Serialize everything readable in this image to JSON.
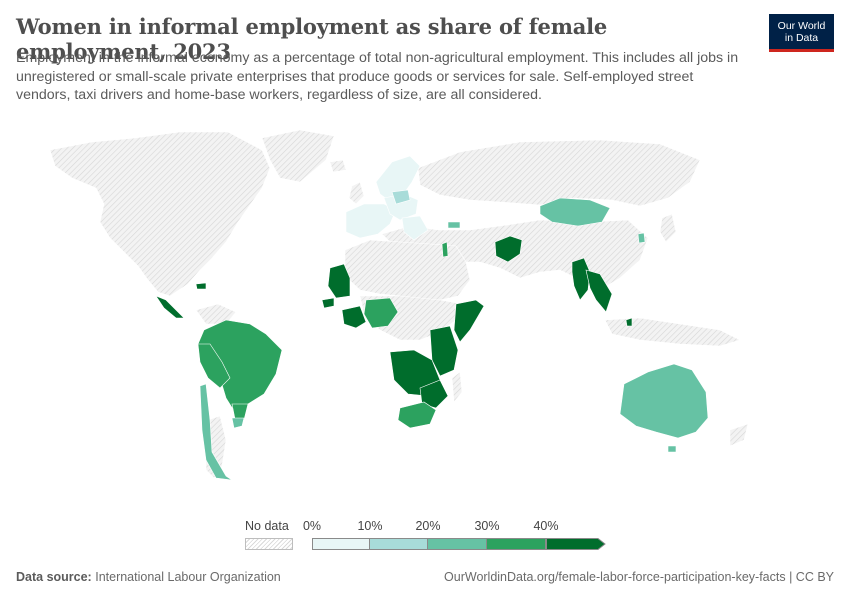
{
  "header": {
    "title": "Women in informal employment as share of female employment, 2023",
    "subtitle": "Employment in the informal economy as a percentage of total non-agricultural employment. This includes all jobs in unregistered or small-scale private enterprises that produce goods or services for sale. Self-employed street vendors, taxi drivers and home-base workers, regardless of size, are all considered."
  },
  "logo": {
    "line1": "Our World",
    "line2": "in Data"
  },
  "legend": {
    "no_data_label": "No data",
    "ticks": [
      "0%",
      "10%",
      "20%",
      "30%",
      "40%"
    ],
    "bins": [
      {
        "from": 0,
        "to": 10,
        "color": "#e8f6f6"
      },
      {
        "from": 10,
        "to": 20,
        "color": "#a8dcd9"
      },
      {
        "from": 20,
        "to": 30,
        "color": "#66c2a4"
      },
      {
        "from": 30,
        "to": 40,
        "color": "#2ca25f"
      },
      {
        "from": 40,
        "to": 50,
        "color": "#006d2c"
      }
    ]
  },
  "colors": {
    "no_data": "#ececec",
    "bin_0_10": "#e8f6f6",
    "bin_10_20": "#a8dcd9",
    "bin_20_30": "#66c2a4",
    "bin_30_40": "#2ca25f",
    "bin_40_plus": "#006d2c",
    "logo_bg": "#002147",
    "logo_accent": "#ce261e"
  },
  "footer": {
    "source_label": "Data source:",
    "source_value": "International Labour Organization",
    "link": "OurWorldinData.org/female-labor-force-participation-key-facts | CC BY"
  }
}
